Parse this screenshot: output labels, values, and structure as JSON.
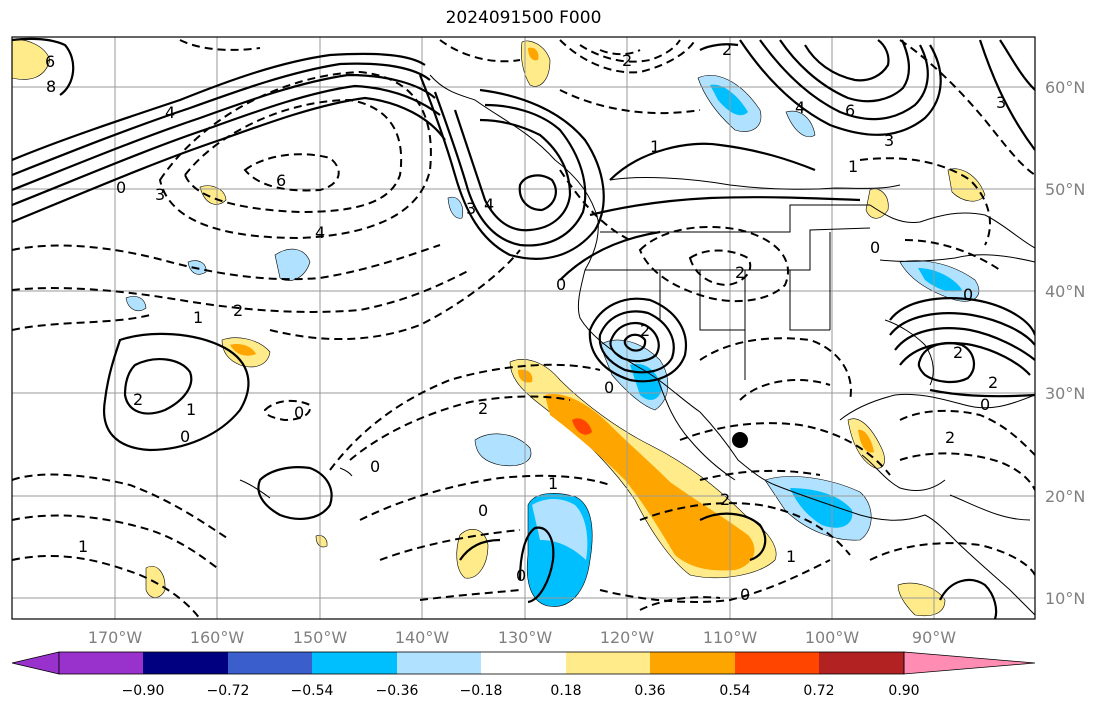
{
  "title": "2024091500 F000",
  "lat_labels": [
    "60°N",
    "50°N",
    "40°N",
    "30°N",
    "20°N",
    "10°N"
  ],
  "lon_labels": [
    "170°W",
    "160°W",
    "150°W",
    "140°W",
    "130°W",
    "120°W",
    "110°W",
    "100°W",
    "90°W"
  ],
  "colorbar": {
    "colors": [
      "#9932cc",
      "#000080",
      "#3a5fcd",
      "#00bfff",
      "#b0e2ff",
      "#ffffff",
      "#ffeb8a",
      "#ffa500",
      "#ff4500",
      "#b22222",
      "#ff8db3"
    ],
    "tick_labels": [
      "−0.90",
      "−0.72",
      "−0.54",
      "−0.36",
      "−0.18",
      "0.18",
      "0.36",
      "0.54",
      "0.72",
      "0.90"
    ]
  },
  "contour_labels": [
    "6",
    "8",
    "4",
    "3",
    "0",
    "6",
    "4",
    "2",
    "1",
    "2",
    "2",
    "1",
    "0",
    "0",
    "2",
    "0",
    "1",
    "0",
    "1",
    "2",
    "1",
    "0",
    "0",
    "2",
    "2",
    "3",
    "4",
    "0",
    "2",
    "4",
    "6",
    "3",
    "2",
    "1",
    "0",
    "0",
    "2",
    "3",
    "0",
    "1",
    "0",
    "2"
  ],
  "colors": {
    "grid": "#9a9a9a",
    "contour": "#000000",
    "marker": "#000000"
  }
}
